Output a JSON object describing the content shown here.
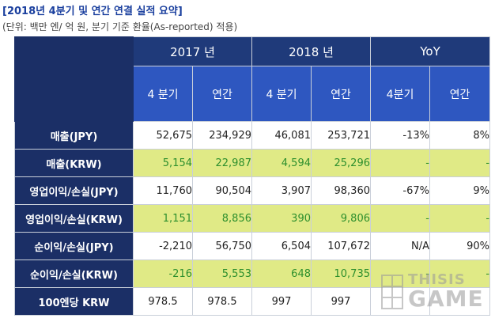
{
  "title": "[2018년 4분기 및 연간 연결 실적 요약]",
  "subtitle": "(단위: 백만 엔/ 억 원, 분기 기준 환율(As-reported) 적용)",
  "table": {
    "groups": [
      "2017 년",
      "2018 년",
      "YoY"
    ],
    "subheaders": [
      "4 분기",
      "연간",
      "4 분기",
      "연간",
      "4분기",
      "연간"
    ],
    "rows": [
      {
        "label": "매출(JPY)",
        "values": [
          "52,675",
          "234,929",
          "46,081",
          "253,721",
          "-13%",
          "8%"
        ]
      },
      {
        "label": "매출(KRW)",
        "values": [
          "5,154",
          "22,987",
          "4,594",
          "25,296",
          "-",
          "-"
        ]
      },
      {
        "label": "영업이익/손실(JPY)",
        "values": [
          "11,760",
          "90,504",
          "3,907",
          "98,360",
          "-67%",
          "9%"
        ]
      },
      {
        "label": "영업이익/손실(KRW)",
        "values": [
          "1,151",
          "8,856",
          "390",
          "9,806",
          "-",
          "-"
        ]
      },
      {
        "label": "순이익/손실(JPY)",
        "values": [
          "-2,210",
          "56,750",
          "6,504",
          "107,672",
          "N/A",
          "90%"
        ]
      },
      {
        "label": "순이익/손실(KRW)",
        "values": [
          "-216",
          "5,553",
          "648",
          "10,735",
          "-",
          "-"
        ]
      },
      {
        "label": "100엔당 KRW",
        "values": [
          "978.5",
          "978.5",
          "997",
          "997",
          "",
          ""
        ]
      }
    ]
  },
  "watermark": {
    "line1": "THISIS",
    "line2": "GAME"
  }
}
